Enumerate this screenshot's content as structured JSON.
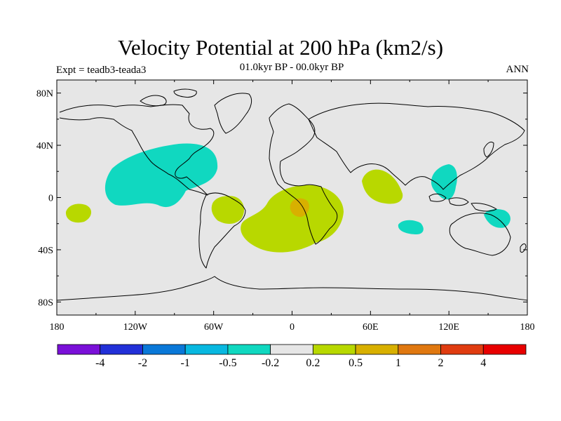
{
  "title": "Velocity Potential at 200 hPa (km2/s)",
  "subtitle": "01.0kyr BP - 00.0kyr BP",
  "left_label": "Expt = teadb3-teada3",
  "right_label": "ANN",
  "map": {
    "lon_range": [
      -180,
      180
    ],
    "lat_range": [
      -90,
      90
    ],
    "lon_ticks": [
      {
        "value": -180,
        "label": "180"
      },
      {
        "value": -120,
        "label": "120W"
      },
      {
        "value": -60,
        "label": "60W"
      },
      {
        "value": 0,
        "label": "0"
      },
      {
        "value": 60,
        "label": "60E"
      },
      {
        "value": 120,
        "label": "120E"
      },
      {
        "value": 180,
        "label": "180"
      }
    ],
    "lat_ticks": [
      {
        "value": 80,
        "label": "80N"
      },
      {
        "value": 40,
        "label": "40N"
      },
      {
        "value": 0,
        "label": "0"
      },
      {
        "value": -40,
        "label": "40S"
      },
      {
        "value": -80,
        "label": "80S"
      }
    ],
    "background_color": "#e6e6e6",
    "coastline_color": "#000000"
  },
  "colorbar": {
    "colors": [
      "#7a10d8",
      "#2230d8",
      "#0a78d8",
      "#08b8e0",
      "#10d8c0",
      "#e6e6e6",
      "#b8d800",
      "#d8b000",
      "#e07810",
      "#e03c10",
      "#e80000"
    ],
    "labels": [
      "-4",
      "-2",
      "-1",
      "-0.5",
      "-0.2",
      "0.2",
      "0.5",
      "1",
      "2",
      "4"
    ]
  }
}
